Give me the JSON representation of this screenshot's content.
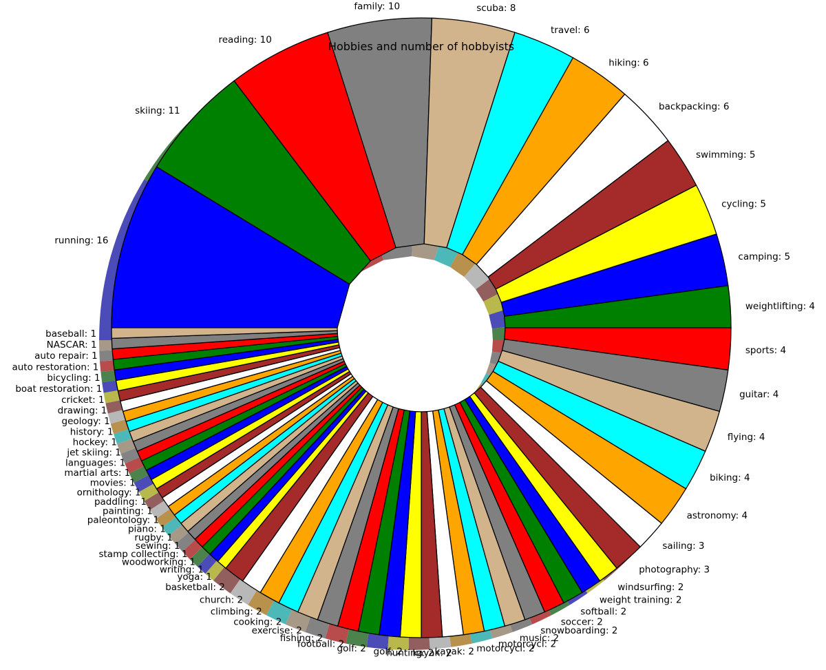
{
  "chart_data": {
    "type": "pie",
    "title": "Hobbies and number of hobbyists",
    "start_angle_deg": 180,
    "direction": "clockwise",
    "shadow": true,
    "colors": [
      "#0000ff",
      "#008000",
      "#ff0000",
      "#808080",
      "#d2b48c",
      "#00ffff",
      "#ffa500",
      "#ffffff",
      "#a52a2a",
      "#ffff00"
    ],
    "slices": [
      {
        "label": "running",
        "value": 16
      },
      {
        "label": "skiing",
        "value": 11
      },
      {
        "label": "reading",
        "value": 10
      },
      {
        "label": "family",
        "value": 10
      },
      {
        "label": "scuba",
        "value": 8
      },
      {
        "label": "travel",
        "value": 6
      },
      {
        "label": "hiking",
        "value": 6
      },
      {
        "label": "backpacking",
        "value": 6
      },
      {
        "label": "swimming",
        "value": 5
      },
      {
        "label": "cycling",
        "value": 5
      },
      {
        "label": "camping",
        "value": 5
      },
      {
        "label": "weightlifting",
        "value": 4
      },
      {
        "label": "sports",
        "value": 4
      },
      {
        "label": "guitar",
        "value": 4
      },
      {
        "label": "flying",
        "value": 4
      },
      {
        "label": "biking",
        "value": 4
      },
      {
        "label": "astronomy",
        "value": 4
      },
      {
        "label": "sailing",
        "value": 3
      },
      {
        "label": "photography",
        "value": 3
      },
      {
        "label": "windsurfing",
        "value": 2
      },
      {
        "label": "weight training",
        "value": 2
      },
      {
        "label": "softball",
        "value": 2
      },
      {
        "label": "soccer",
        "value": 2
      },
      {
        "label": "snowboarding",
        "value": 2
      },
      {
        "label": "music",
        "value": 2
      },
      {
        "label": "motorcycl",
        "value": 2
      },
      {
        "label": "motorcycl",
        "value": 2
      },
      {
        "label": "kayak",
        "value": 2
      },
      {
        "label": "kayak",
        "value": 2
      },
      {
        "label": "hunting",
        "value": 2
      },
      {
        "label": "golf",
        "value": 2
      },
      {
        "label": "golf",
        "value": 2
      },
      {
        "label": "football",
        "value": 2
      },
      {
        "label": "fishing",
        "value": 2
      },
      {
        "label": "exercise",
        "value": 2
      },
      {
        "label": "cooking",
        "value": 2
      },
      {
        "label": "climbing",
        "value": 2
      },
      {
        "label": "church",
        "value": 2
      },
      {
        "label": "basketball",
        "value": 2
      },
      {
        "label": "yoga",
        "value": 1
      },
      {
        "label": "writing",
        "value": 1
      },
      {
        "label": "woodworking",
        "value": 1
      },
      {
        "label": "stamp collecting",
        "value": 1
      },
      {
        "label": "sewing",
        "value": 1
      },
      {
        "label": "rugby",
        "value": 1
      },
      {
        "label": "piano",
        "value": 1
      },
      {
        "label": "paleontology",
        "value": 1
      },
      {
        "label": "painting",
        "value": 1
      },
      {
        "label": "paddling",
        "value": 1
      },
      {
        "label": "ornithology",
        "value": 1
      },
      {
        "label": "movies",
        "value": 1
      },
      {
        "label": "martial arts",
        "value": 1
      },
      {
        "label": "languages",
        "value": 1
      },
      {
        "label": "jet skiing",
        "value": 1
      },
      {
        "label": "hockey",
        "value": 1
      },
      {
        "label": "history",
        "value": 1
      },
      {
        "label": "geology",
        "value": 1
      },
      {
        "label": "drawing",
        "value": 1
      },
      {
        "label": "cricket",
        "value": 1
      },
      {
        "label": "boat restoration",
        "value": 1
      },
      {
        "label": "bicycling",
        "value": 1
      },
      {
        "label": "auto restoration",
        "value": 1
      },
      {
        "label": "auto repair",
        "value": 1
      },
      {
        "label": "NASCAR",
        "value": 1
      },
      {
        "label": "baseball",
        "value": 1
      }
    ]
  }
}
